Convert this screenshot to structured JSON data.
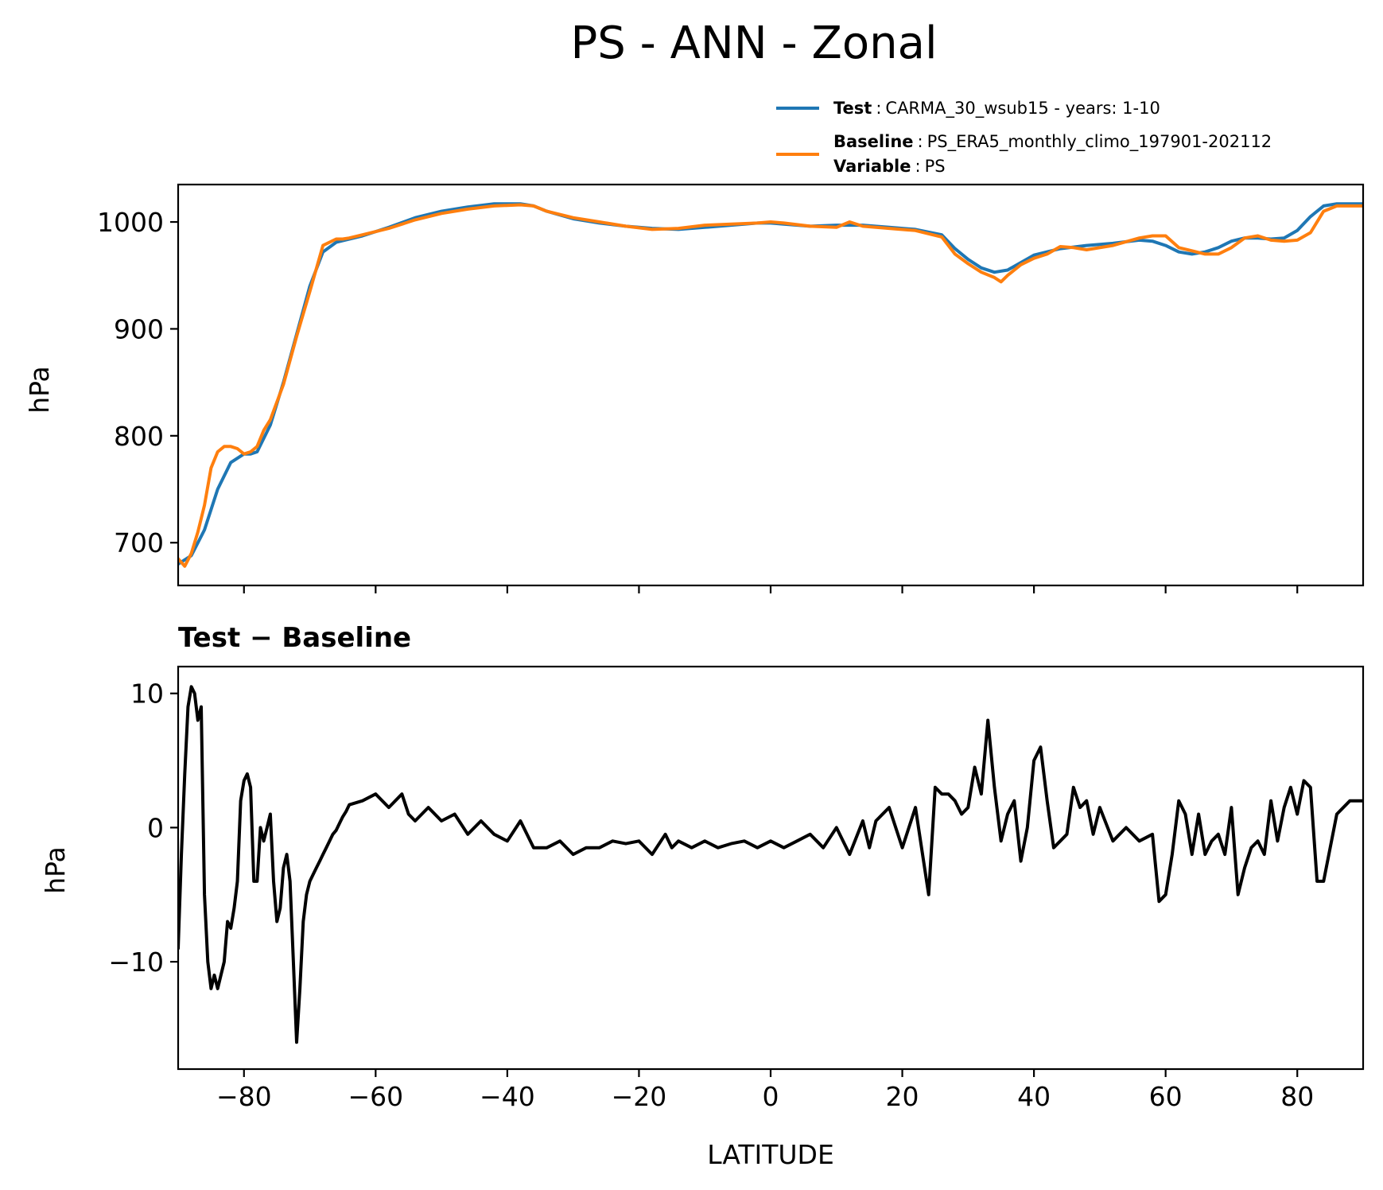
{
  "chart_data": [
    {
      "type": "line",
      "title": "PS - ANN - Zonal",
      "xlabel": "",
      "ylabel": "hPa",
      "xlim": [
        -90,
        90
      ],
      "ylim": [
        660,
        1035
      ],
      "xticks": [
        -80,
        -60,
        -40,
        -20,
        0,
        20,
        40,
        60,
        80
      ],
      "yticks": [
        700,
        800,
        900,
        1000
      ],
      "ytick_labels": [
        "700",
        "800",
        "900",
        "1000"
      ],
      "legend": {
        "placement": "above-right",
        "entries": [
          {
            "key": "Test",
            "sep": ":",
            "value": "CARMA_30_wsub15 - years: 1-10"
          },
          {
            "key": "Baseline",
            "sep": ":",
            "value": "PS_ERA5_monthly_climo_197901-202112"
          },
          {
            "key": "Variable",
            "sep": ":",
            "value": "PS"
          }
        ]
      },
      "series": [
        {
          "name": "Test",
          "color": "#1f77b4",
          "x": [
            -90,
            -88,
            -86,
            -84,
            -82,
            -80,
            -79,
            -78,
            -76,
            -74,
            -72,
            -70,
            -68,
            -66,
            -64,
            -62,
            -58,
            -54,
            -50,
            -46,
            -42,
            -38,
            -36,
            -34,
            -30,
            -26,
            -22,
            -18,
            -14,
            -10,
            -6,
            -2,
            0,
            2,
            6,
            10,
            14,
            18,
            22,
            26,
            28,
            30,
            32,
            34,
            36,
            38,
            40,
            44,
            48,
            52,
            56,
            58,
            60,
            62,
            64,
            66,
            68,
            70,
            72,
            74,
            76,
            78,
            80,
            82,
            84,
            86,
            90
          ],
          "values": [
            680,
            688,
            712,
            750,
            775,
            783,
            783,
            785,
            810,
            850,
            895,
            940,
            972,
            981,
            984,
            987,
            995,
            1004,
            1010,
            1014,
            1017,
            1017,
            1015,
            1010,
            1003,
            999,
            996,
            994,
            993,
            995,
            997,
            999,
            999,
            998,
            996,
            997,
            997,
            995,
            993,
            988,
            975,
            965,
            957,
            953,
            955,
            962,
            969,
            975,
            978,
            980,
            983,
            982,
            978,
            972,
            970,
            972,
            976,
            982,
            985,
            985,
            984,
            985,
            992,
            1005,
            1015,
            1017,
            1017
          ]
        },
        {
          "name": "Baseline",
          "color": "#ff7f0e",
          "x": [
            -90,
            -89,
            -88,
            -87,
            -86,
            -85,
            -84,
            -83,
            -82,
            -81,
            -80,
            -79,
            -78,
            -77,
            -76,
            -74,
            -72,
            -70,
            -68,
            -66,
            -65,
            -64,
            -62,
            -58,
            -54,
            -50,
            -46,
            -42,
            -38,
            -36,
            -34,
            -30,
            -26,
            -22,
            -18,
            -14,
            -10,
            -6,
            -2,
            0,
            2,
            6,
            10,
            12,
            14,
            18,
            22,
            26,
            28,
            30,
            32,
            34,
            35,
            36,
            38,
            40,
            42,
            44,
            46,
            48,
            52,
            56,
            58,
            60,
            62,
            64,
            66,
            68,
            70,
            72,
            74,
            76,
            78,
            80,
            82,
            84,
            86,
            90
          ],
          "values": [
            685,
            678,
            690,
            710,
            735,
            770,
            785,
            790,
            790,
            788,
            783,
            785,
            790,
            805,
            815,
            848,
            893,
            935,
            978,
            984,
            984,
            985,
            988,
            994,
            1002,
            1008,
            1012,
            1015,
            1016,
            1015,
            1010,
            1004,
            1000,
            996,
            993,
            994,
            997,
            998,
            999,
            1000,
            999,
            996,
            995,
            1000,
            996,
            994,
            992,
            986,
            970,
            961,
            953,
            948,
            944,
            950,
            960,
            966,
            970,
            977,
            976,
            974,
            978,
            985,
            987,
            987,
            976,
            973,
            970,
            970,
            976,
            985,
            987,
            983,
            982,
            983,
            990,
            1010,
            1015,
            1015
          ]
        }
      ]
    },
    {
      "type": "line",
      "title": "Test − Baseline",
      "xlabel": "LATITUDE",
      "ylabel": "hPa",
      "xlim": [
        -90,
        90
      ],
      "ylim": [
        -18,
        12
      ],
      "xticks": [
        -80,
        -60,
        -40,
        -20,
        0,
        20,
        40,
        60,
        80
      ],
      "xtick_labels": [
        "−80",
        "−60",
        "−40",
        "−20",
        "0",
        "20",
        "40",
        "60",
        "80"
      ],
      "yticks": [
        -10,
        0,
        10
      ],
      "ytick_labels": [
        "−10",
        "0",
        "10"
      ],
      "series": [
        {
          "name": "Test - Baseline",
          "color": "#000000",
          "x": [
            -90,
            -89.5,
            -89,
            -88.5,
            -88,
            -87.5,
            -87,
            -86.5,
            -86,
            -85.5,
            -85,
            -84.5,
            -84,
            -83.5,
            -83,
            -82.5,
            -82,
            -81.5,
            -81,
            -80.5,
            -80,
            -79.5,
            -79,
            -78.5,
            -78,
            -77.5,
            -77,
            -76.5,
            -76,
            -75.5,
            -75,
            -74.5,
            -74,
            -73.5,
            -73,
            -72.5,
            -72,
            -71.5,
            -71,
            -70.5,
            -70,
            -69.5,
            -69,
            -68.5,
            -68,
            -67.5,
            -67,
            -66.5,
            -66,
            -65.5,
            -65,
            -64.5,
            -64,
            -62,
            -60,
            -58,
            -56,
            -55,
            -54,
            -52,
            -50,
            -48,
            -46,
            -44,
            -42,
            -40,
            -38,
            -36,
            -34,
            -32,
            -30,
            -28,
            -26,
            -24,
            -22,
            -20,
            -18,
            -16,
            -15,
            -14,
            -12,
            -10,
            -8,
            -6,
            -4,
            -2,
            0,
            2,
            4,
            6,
            8,
            10,
            12,
            14,
            15,
            16,
            18,
            20,
            22,
            24,
            25,
            26,
            27,
            28,
            29,
            30,
            31,
            32,
            33,
            34,
            35,
            36,
            37,
            38,
            39,
            40,
            41,
            42,
            43,
            44,
            45,
            46,
            47,
            48,
            49,
            50,
            52,
            54,
            56,
            58,
            59,
            60,
            61,
            62,
            63,
            64,
            65,
            66,
            67,
            68,
            69,
            70,
            71,
            72,
            73,
            74,
            75,
            76,
            77,
            78,
            79,
            80,
            81,
            82,
            83,
            84,
            86,
            88,
            90
          ],
          "values": [
            -9,
            -2,
            4,
            9,
            10.5,
            10,
            8,
            9,
            -5,
            -10,
            -12,
            -11,
            -12,
            -11,
            -10,
            -7,
            -7.5,
            -6,
            -4,
            2,
            3.5,
            4,
            3,
            -4,
            -4,
            0,
            -1,
            0,
            1,
            -4,
            -7,
            -6,
            -3,
            -2,
            -4,
            -10,
            -16,
            -12,
            -7,
            -5,
            -4,
            -3.5,
            -3,
            -2.5,
            -2,
            -1.5,
            -1,
            -0.5,
            -0.2,
            0.3,
            0.8,
            1.2,
            1.7,
            2,
            2.5,
            1.5,
            2.5,
            1,
            0.5,
            1.5,
            0.5,
            1,
            -0.5,
            0.5,
            -0.5,
            -1,
            0.5,
            -1.5,
            -1.5,
            -1,
            -2,
            -1.5,
            -1.5,
            -1,
            -1.2,
            -1,
            -2,
            -0.5,
            -1.5,
            -1,
            -1.5,
            -1,
            -1.5,
            -1.2,
            -1,
            -1.5,
            -1,
            -1.5,
            -1,
            -0.5,
            -1.5,
            0,
            -2,
            0.5,
            -1.5,
            0.5,
            1.5,
            -1.5,
            1.5,
            -5,
            3,
            2.5,
            2.5,
            2,
            1,
            1.5,
            4.5,
            2.5,
            8,
            3,
            -1,
            1,
            2,
            -2.5,
            0,
            5,
            6,
            2,
            -1.5,
            -1,
            -0.5,
            3,
            1.5,
            2,
            -0.5,
            1.5,
            -1,
            0,
            -1,
            -0.5,
            -5.5,
            -5,
            -2,
            2,
            1,
            -2,
            1,
            -2,
            -1,
            -0.5,
            -2,
            1.5,
            -5,
            -3,
            -1.5,
            -1,
            -2,
            2,
            -1,
            1.5,
            3,
            1,
            3.5,
            3,
            -4,
            -4,
            1,
            2,
            2
          ]
        }
      ]
    }
  ]
}
